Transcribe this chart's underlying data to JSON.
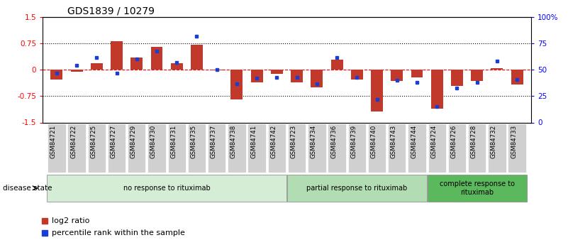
{
  "title": "GDS1839 / 10279",
  "samples": [
    "GSM84721",
    "GSM84722",
    "GSM84725",
    "GSM84727",
    "GSM84729",
    "GSM84730",
    "GSM84731",
    "GSM84735",
    "GSM84737",
    "GSM84738",
    "GSM84741",
    "GSM84742",
    "GSM84723",
    "GSM84734",
    "GSM84736",
    "GSM84739",
    "GSM84740",
    "GSM84743",
    "GSM84744",
    "GSM84724",
    "GSM84726",
    "GSM84728",
    "GSM84732",
    "GSM84733"
  ],
  "log2_ratio": [
    -0.28,
    -0.05,
    0.18,
    0.82,
    0.35,
    0.65,
    0.18,
    0.72,
    -0.02,
    -0.85,
    -0.35,
    -0.12,
    -0.35,
    -0.5,
    0.28,
    -0.28,
    -1.18,
    -0.32,
    -0.22,
    -1.1,
    -0.45,
    -0.32,
    0.04,
    -0.42
  ],
  "percentile_rank": [
    47,
    54,
    62,
    47,
    60,
    68,
    57,
    82,
    50,
    37,
    42,
    43,
    43,
    37,
    62,
    43,
    22,
    40,
    38,
    15,
    33,
    38,
    58,
    41
  ],
  "groups": [
    {
      "label": "no response to rituximab",
      "start": 0,
      "end": 11,
      "color": "#d5ecd5"
    },
    {
      "label": "partial response to rituximab",
      "start": 12,
      "end": 18,
      "color": "#b2dcb2"
    },
    {
      "label": "complete response to\nrituximab",
      "start": 19,
      "end": 23,
      "color": "#5cb85c"
    }
  ],
  "ylim": [
    -1.5,
    1.5
  ],
  "yticks_left": [
    -1.5,
    -0.75,
    0,
    0.75,
    1.5
  ],
  "ytick_labels_left": [
    "-1.5",
    "-0.75",
    "0",
    "0.75",
    "1.5"
  ],
  "yticks_right_vals": [
    0,
    25,
    50,
    75,
    100
  ],
  "ytick_labels_right": [
    "0",
    "25",
    "50",
    "75",
    "100%"
  ],
  "hlines": [
    -0.75,
    0.75
  ],
  "bar_color": "#c0392b",
  "dot_color": "#1a3ed4",
  "legend_items": [
    "log2 ratio",
    "percentile rank within the sample"
  ],
  "background_color": "#ffffff"
}
